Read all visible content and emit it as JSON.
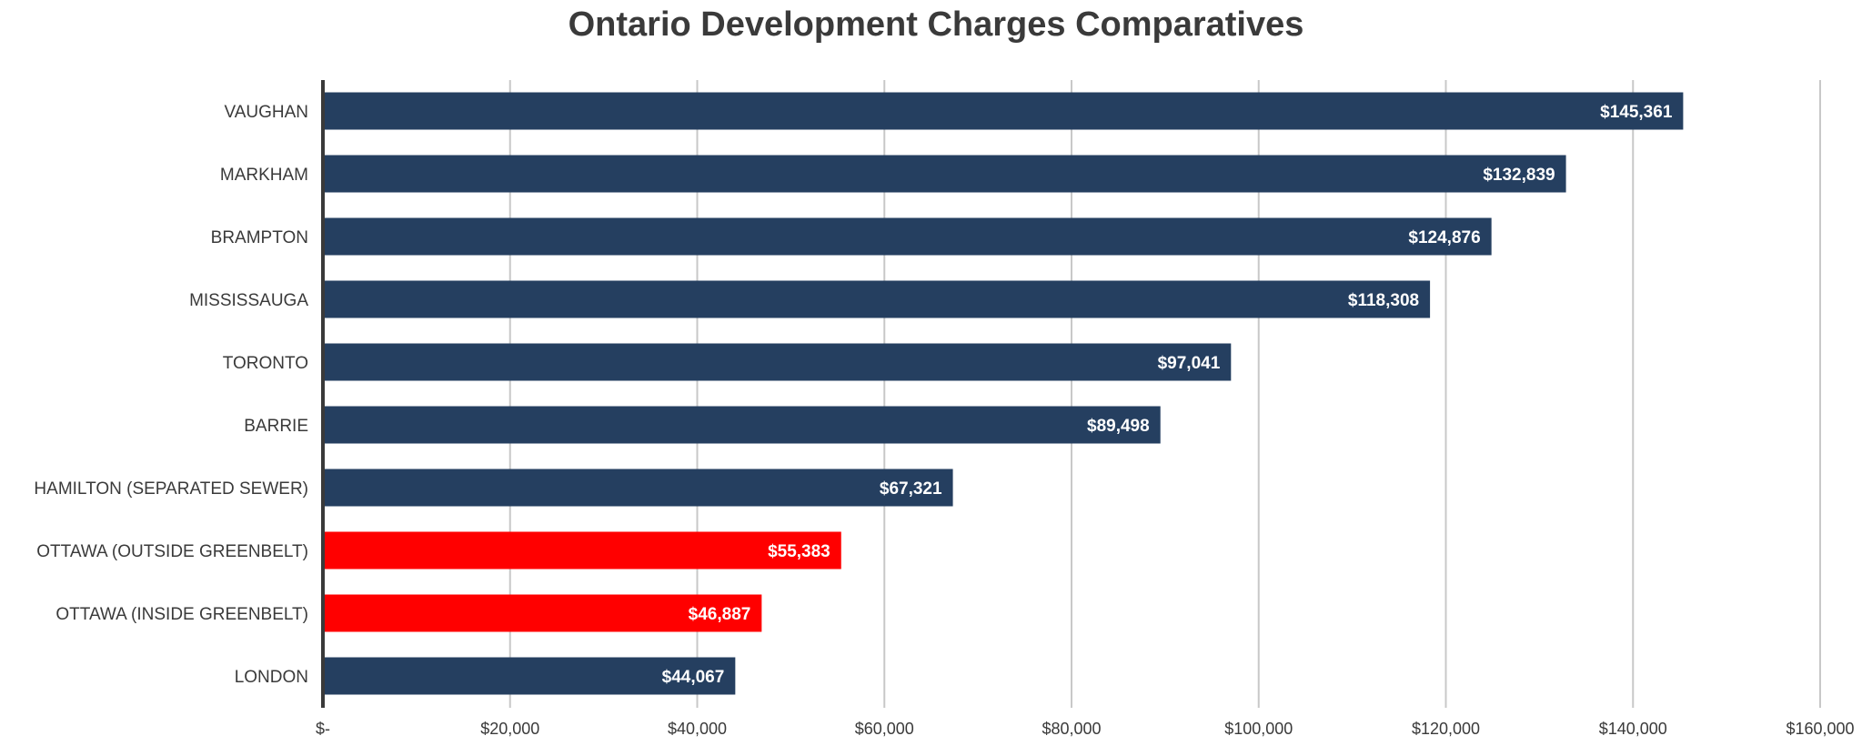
{
  "chart_data": {
    "type": "bar",
    "orientation": "horizontal",
    "title": "Ontario Development Charges Comparatives",
    "categories": [
      "VAUGHAN",
      "MARKHAM",
      "BRAMPTON",
      "MISSISSAUGA",
      "TORONTO",
      "BARRIE",
      "HAMILTON (SEPARATED SEWER)",
      "OTTAWA (OUTSIDE GREENBELT)",
      "OTTAWA (INSIDE GREENBELT)",
      "LONDON"
    ],
    "values": [
      145361,
      132839,
      124876,
      118308,
      97041,
      89498,
      67321,
      55383,
      46887,
      44067
    ],
    "data_labels": [
      "$145,361",
      "$132,839",
      "$124,876",
      "$118,308",
      "$97,041",
      "$89,498",
      "$67,321",
      "$55,383",
      "$46,887",
      "$44,067"
    ],
    "bar_colors": [
      "#253f60",
      "#253f60",
      "#253f60",
      "#253f60",
      "#253f60",
      "#253f60",
      "#253f60",
      "#ff0000",
      "#ff0000",
      "#253f60"
    ],
    "xlim": [
      0,
      160000
    ],
    "x_ticks": [
      0,
      20000,
      40000,
      60000,
      80000,
      100000,
      120000,
      140000,
      160000
    ],
    "x_tick_labels": [
      "$-",
      "$20,000",
      "$40,000",
      "$60,000",
      "$80,000",
      "$100,000",
      "$120,000",
      "$140,000",
      "$160,000"
    ],
    "xlabel": "",
    "ylabel": "",
    "grid": "vertical",
    "legend": "none"
  },
  "colors": {
    "grid": "#c8c8c8",
    "axis": "#3a3a3a",
    "text": "#3a3a3a"
  }
}
